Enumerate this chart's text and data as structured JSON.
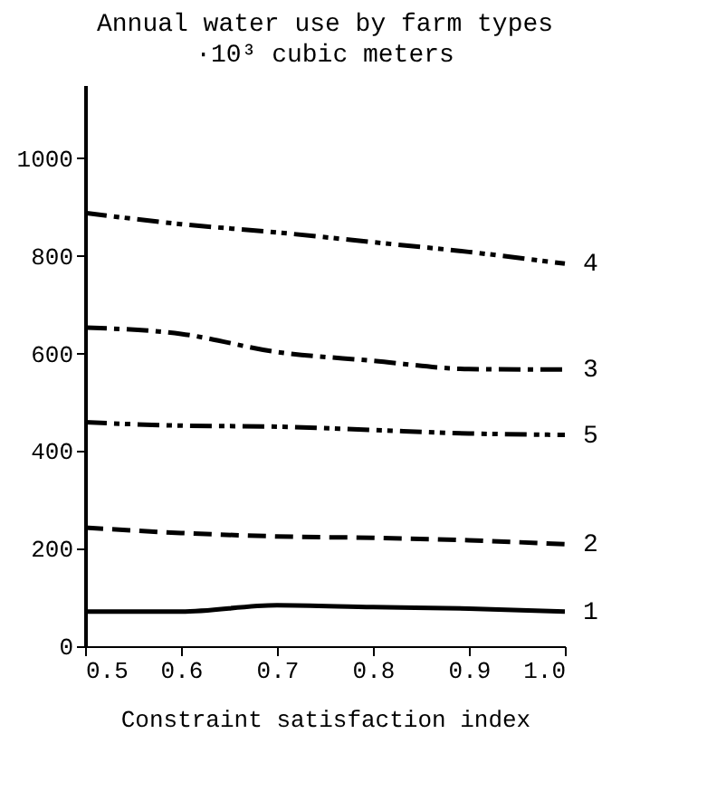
{
  "chart_data": {
    "type": "line",
    "title": "Annual water use by farm types",
    "subtitle": "·10³ cubic meters",
    "xlabel": "Constraint satisfaction index",
    "x": [
      0.5,
      0.6,
      0.7,
      0.8,
      0.9,
      1.0
    ],
    "series": [
      {
        "name": "1",
        "color": "#000000",
        "line_style": "solid",
        "values": [
          71,
          71,
          84,
          80,
          77,
          71
        ]
      },
      {
        "name": "2",
        "color": "#000000",
        "line_style": "dashed",
        "values": [
          243,
          232,
          225,
          222,
          217,
          209
        ]
      },
      {
        "name": "3",
        "color": "#000000",
        "line_style": "dashdot",
        "values": [
          653,
          640,
          603,
          585,
          568,
          567
        ]
      },
      {
        "name": "4",
        "color": "#000000",
        "line_style": "dashdotdot",
        "values": [
          888,
          865,
          848,
          828,
          808,
          784
        ]
      },
      {
        "name": "5",
        "color": "#000000",
        "line_style": "dashdotdot",
        "values": [
          459,
          452,
          450,
          443,
          436,
          433
        ]
      }
    ],
    "xlim": [
      0.5,
      1.0
    ],
    "xticks": [
      0.5,
      0.6,
      0.7,
      0.8,
      0.9,
      {
        "value": 1.0,
        "label": "1.0"
      }
    ],
    "ylim": [
      0,
      1150
    ],
    "yticks": [
      0,
      200,
      400,
      600,
      800,
      1000
    ],
    "grid": false,
    "marker": "none"
  }
}
